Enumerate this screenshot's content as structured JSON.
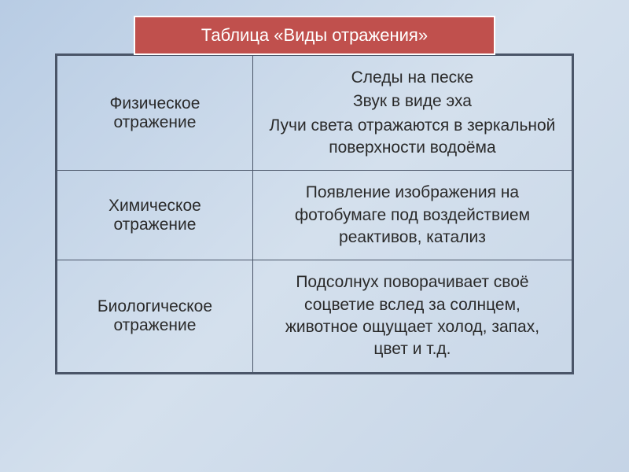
{
  "header": {
    "title": "Таблица «Виды отражения»"
  },
  "table": {
    "rows": [
      {
        "type": "Физическое отражение",
        "examples": [
          "Следы на песке",
          "Звук в виде эха",
          "Лучи света отражаются в зеркальной поверхности водоёма"
        ]
      },
      {
        "type": "Химическое отражение",
        "examples": [
          "Появление изображения на фотобумаге под воздействием реактивов, катализ"
        ]
      },
      {
        "type": "Биологическое отражение",
        "examples": [
          "Подсолнух поворачивает своё соцветие вслед за солнцем, животное ощущает холод, запах, цвет и т.д."
        ]
      }
    ]
  },
  "styling": {
    "header_bg": "#c0504d",
    "header_text_color": "#ffffff",
    "header_border": "#ffffff",
    "table_border": "#4a5568",
    "text_color": "#2a2a2a",
    "body_bg_start": "#b8cce4",
    "body_bg_end": "#c5d4e6",
    "header_fontsize": 22,
    "cell_fontsize": 21,
    "col_left_width": "38%",
    "col_right_width": "62%"
  }
}
